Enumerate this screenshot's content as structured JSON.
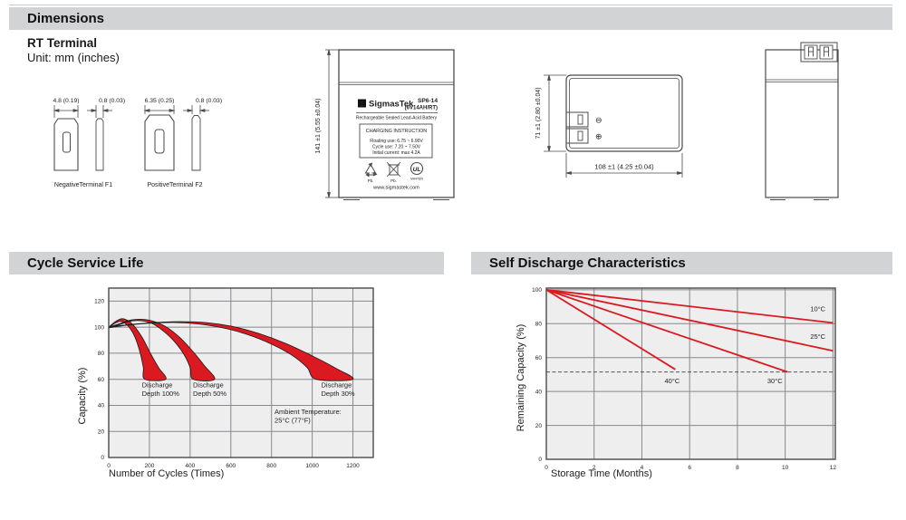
{
  "page": {
    "dimensions_title": "Dimensions",
    "rt_terminal": "RT Terminal",
    "unit_note": "Unit: mm (inches)",
    "cycle_title": "Cycle Service Life",
    "self_discharge_title": "Self Discharge Characteristics"
  },
  "colors": {
    "header_bg": "#d1d3d4",
    "chart_bg": "#eeeeee",
    "grid": "#86888b",
    "frame": "#4a4a4c",
    "red": "#da1a20",
    "line_dark": "#1a1a1a"
  },
  "terminals": {
    "negative": {
      "caption": "NegativeTerminal F1",
      "width_dim": "4.8 (0.19)",
      "thickness_dim": "0.8 (0.03)"
    },
    "positive": {
      "caption": "PositiveTerminal F2",
      "width_dim": "6.35 (0.25)",
      "thickness_dim": "0.8 (0.03)"
    }
  },
  "battery_front": {
    "height_dim": "141 ±1 (5.55 ±0.04)",
    "brand_glyph": "Σ",
    "brand": "SigmasTek",
    "model": "SP6-14",
    "spec": "(6V14AH/RT)",
    "type_line": "Rechargeable Sealed Lead-Acid Battery",
    "charging_title": "CHARGING INSTRUCTION",
    "charging_lines": [
      "Floating use: 6.75 ~ 6.90V",
      "Cycle use: 7.20 ~ 7.50V",
      "Initial current: max 4.2A"
    ],
    "pb_label": "Pb.",
    "ul_mark": "UL",
    "ul_code": "MH47829",
    "website": "www.sigmastek.com"
  },
  "battery_top": {
    "height_dim": "71 ±1 (2.80 ±0.04)",
    "width_dim": "108 ±1 (4.25 ±0.04)",
    "neg_symbol": "⊖",
    "pos_symbol": "⊕"
  },
  "chart_data": [
    {
      "type": "area",
      "title": "Cycle Service Life",
      "xlabel": "Number of Cycles (Times)",
      "ylabel": "Capacity (%)",
      "xlim": [
        0,
        1300
      ],
      "ylim": [
        0,
        130
      ],
      "xticks": [
        0,
        200,
        400,
        600,
        800,
        1000,
        1200
      ],
      "yticks": [
        0,
        20,
        40,
        60,
        80,
        100,
        120
      ],
      "grid": true,
      "bands": [
        {
          "name": "Discharge Depth 100%",
          "upper": [
            [
              0,
              100
            ],
            [
              30,
              104
            ],
            [
              65,
              106.5
            ],
            [
              100,
              104.5
            ],
            [
              130,
              100
            ],
            [
              165,
              92
            ],
            [
              205,
              80
            ],
            [
              245,
              69
            ],
            [
              280,
              60
            ]
          ],
          "lower": [
            [
              0,
              99.5
            ],
            [
              25,
              102.5
            ],
            [
              55,
              104.5
            ],
            [
              80,
              103
            ],
            [
              105,
              99
            ],
            [
              130,
              92
            ],
            [
              155,
              80
            ],
            [
              170,
              69
            ],
            [
              178,
              60
            ]
          ]
        },
        {
          "name": "Discharge Depth 50%",
          "upper": [
            [
              0,
              100
            ],
            [
              60,
              103
            ],
            [
              110,
              105.5
            ],
            [
              170,
              106
            ],
            [
              230,
              104
            ],
            [
              290,
              99.5
            ],
            [
              350,
              92
            ],
            [
              410,
              82
            ],
            [
              470,
              70.5
            ],
            [
              520,
              60
            ]
          ],
          "lower": [
            [
              0,
              99.5
            ],
            [
              55,
              102
            ],
            [
              100,
              104.5
            ],
            [
              155,
              105
            ],
            [
              210,
              103
            ],
            [
              265,
              97.5
            ],
            [
              320,
              89.5
            ],
            [
              370,
              79
            ],
            [
              400,
              69
            ],
            [
              415,
              60
            ]
          ]
        },
        {
          "name": "Discharge Depth 30%",
          "upper": [
            [
              0,
              100
            ],
            [
              100,
              102
            ],
            [
              220,
              103.5
            ],
            [
              350,
              104.3
            ],
            [
              480,
              103.5
            ],
            [
              610,
              100.5
            ],
            [
              740,
              95
            ],
            [
              870,
              87.5
            ],
            [
              1000,
              78
            ],
            [
              1110,
              69
            ],
            [
              1200,
              60
            ]
          ],
          "lower": [
            [
              0,
              99.5
            ],
            [
              90,
              101.5
            ],
            [
              200,
              103
            ],
            [
              320,
              103.6
            ],
            [
              440,
              102.5
            ],
            [
              560,
              99.5
            ],
            [
              680,
              94.5
            ],
            [
              800,
              87
            ],
            [
              900,
              78.5
            ],
            [
              975,
              69
            ],
            [
              1020,
              60
            ]
          ]
        }
      ],
      "annotations": [
        {
          "lines": [
            "Discharge",
            "Depth 100%"
          ],
          "x": 163,
          "y": 54
        },
        {
          "lines": [
            "Discharge",
            "Depth 50%"
          ],
          "x": 414,
          "y": 54
        },
        {
          "lines": [
            "Discharge",
            "Depth 30%"
          ],
          "x": 1044,
          "y": 54
        },
        {
          "lines": [
            "Ambient Temperature:",
            "25°C (77°F)"
          ],
          "x": 815,
          "y": 33.5
        }
      ]
    },
    {
      "type": "line",
      "title": "Self Discharge Characteristics",
      "xlabel": "Storage Time (Months)",
      "ylabel": "Remaining Capacity (%)",
      "xlim": [
        0,
        12.1
      ],
      "ylim": [
        0,
        101
      ],
      "xticks": [
        0,
        2,
        4,
        6,
        8,
        10,
        12
      ],
      "yticks": [
        0,
        20,
        40,
        60,
        80,
        100
      ],
      "grid": true,
      "dashed_line_y": 51.5,
      "series": [
        {
          "name": "10°C",
          "points": [
            [
              0,
              100
            ],
            [
              12,
              80.5
            ]
          ],
          "label_pos": [
            11.05,
            87.5
          ]
        },
        {
          "name": "25°C",
          "points": [
            [
              0,
              100
            ],
            [
              12,
              64
            ]
          ],
          "label_pos": [
            11.05,
            71
          ]
        },
        {
          "name": "30°C",
          "points": [
            [
              0,
              100
            ],
            [
              10.1,
              51.5
            ]
          ],
          "label_pos": [
            9.25,
            45
          ]
        },
        {
          "name": "40°C",
          "points": [
            [
              0,
              100
            ],
            [
              5.4,
              53
            ]
          ],
          "label_pos": [
            4.95,
            45
          ]
        }
      ]
    }
  ]
}
